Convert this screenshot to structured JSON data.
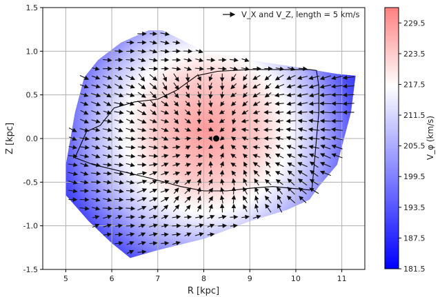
{
  "chart_data": {
    "type": "quiver",
    "xlabel": "R [kpc]",
    "ylabel": "Z [kpc]",
    "xlim": [
      4.5,
      11.5
    ],
    "ylim": [
      -1.5,
      1.5
    ],
    "x_ticks": [
      "5",
      "6",
      "7",
      "8",
      "9",
      "10",
      "11"
    ],
    "y_ticks": [
      "-1.5",
      "-1.0",
      "-0.5",
      "0.0",
      "0.5",
      "1.0",
      "1.5"
    ],
    "grid": true,
    "legend": {
      "position": "top-right",
      "label": "V_X and V_Z, length = 5 km/s"
    },
    "sun_marker": {
      "R": 8.27,
      "Z": 0.0
    },
    "colorbar": {
      "label": "V_φ (km/s)",
      "min": 181.5,
      "max": 232.5,
      "ticks": [
        "181.5",
        "187.5",
        "193.5",
        "199.5",
        "205.5",
        "211.5",
        "217.5",
        "223.5",
        "229.5"
      ],
      "colors": {
        "low": "#0000ff",
        "mid": "#ffffff",
        "high": "#ff8080"
      }
    },
    "hull": [
      [
        6.8,
        1.24
      ],
      [
        7.1,
        1.24
      ],
      [
        8.0,
        1.0
      ],
      [
        9.0,
        0.9
      ],
      [
        10.0,
        0.82
      ],
      [
        10.9,
        0.74
      ],
      [
        11.3,
        0.72
      ],
      [
        11.2,
        0.3
      ],
      [
        10.9,
        -0.3
      ],
      [
        10.5,
        -0.55
      ],
      [
        10.3,
        -0.7
      ],
      [
        9.8,
        -0.82
      ],
      [
        9.0,
        -0.95
      ],
      [
        8.0,
        -1.15
      ],
      [
        7.0,
        -1.28
      ],
      [
        6.4,
        -1.37
      ],
      [
        6.0,
        -1.2
      ],
      [
        5.5,
        -0.95
      ],
      [
        5.0,
        -0.65
      ],
      [
        5.0,
        -0.3
      ],
      [
        5.2,
        0.3
      ],
      [
        5.4,
        0.7
      ],
      [
        5.7,
        0.9
      ],
      [
        6.2,
        1.1
      ]
    ],
    "contour": [
      [
        5.2,
        -0.22
      ],
      [
        5.45,
        0.08
      ],
      [
        5.75,
        0.15
      ],
      [
        6.05,
        0.35
      ],
      [
        6.5,
        0.42
      ],
      [
        7.0,
        0.45
      ],
      [
        7.4,
        0.55
      ],
      [
        7.85,
        0.72
      ],
      [
        8.3,
        0.77
      ],
      [
        9.0,
        0.79
      ],
      [
        9.6,
        0.79
      ],
      [
        10.3,
        0.79
      ],
      [
        10.45,
        0.78
      ],
      [
        10.5,
        0.6
      ],
      [
        10.5,
        0.3
      ],
      [
        10.45,
        0.0
      ],
      [
        10.4,
        -0.3
      ],
      [
        10.35,
        -0.58
      ],
      [
        10.3,
        -0.59
      ],
      [
        9.9,
        -0.57
      ],
      [
        9.5,
        -0.55
      ],
      [
        9.0,
        -0.57
      ],
      [
        8.5,
        -0.6
      ],
      [
        8.0,
        -0.6
      ],
      [
        7.5,
        -0.55
      ],
      [
        6.8,
        -0.45
      ],
      [
        6.0,
        -0.35
      ],
      [
        5.6,
        -0.3
      ],
      [
        5.2,
        -0.22
      ]
    ]
  }
}
